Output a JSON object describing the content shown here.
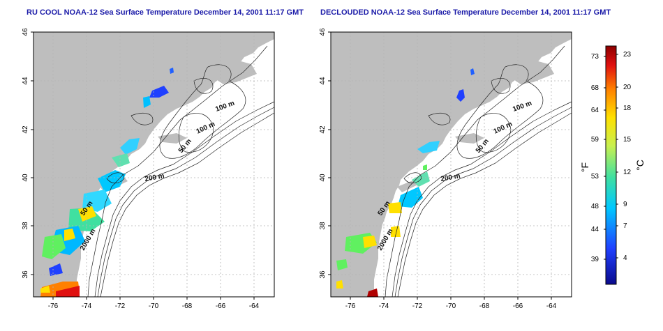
{
  "panels": [
    {
      "title": "RU COOL NOAA-12 Sea Surface Temperature December 14, 2001 11:17 GMT",
      "contour_labels": [
        "100 m",
        "100 m",
        "50 m",
        "200 m",
        "50 m",
        "2000 m"
      ]
    },
    {
      "title": "DECLOUDED NOAA-12 Sea Surface Temperature December 14, 2001 11:17 GMT",
      "contour_labels": [
        "100 m",
        "100 m",
        "50 m",
        "200 m",
        "50 m",
        "2000 m"
      ]
    }
  ],
  "axes": {
    "x_ticks": [
      "-76",
      "-74",
      "-72",
      "-70",
      "-68",
      "-66",
      "-64"
    ],
    "y_ticks": [
      "46",
      "44",
      "42",
      "40",
      "38",
      "36"
    ]
  },
  "colorbar": {
    "unit_f": "°F",
    "unit_c": "°C",
    "f_ticks": [
      "73",
      "68",
      "64",
      "59",
      "53",
      "48",
      "44",
      "39"
    ],
    "c_ticks": [
      "23",
      "20",
      "18",
      "15",
      "12",
      "9",
      "7",
      "4"
    ]
  },
  "colors": {
    "land": "#bebebe",
    "title": "#1a1aa8",
    "grid": "#b4b4b4"
  }
}
